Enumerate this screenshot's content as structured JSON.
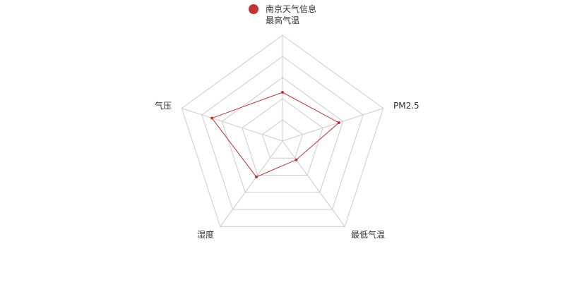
{
  "chart_data": {
    "type": "radar",
    "title": "最高气温",
    "legend": [
      "南京天气信息"
    ],
    "legend_position": "top-center",
    "indicators": [
      "最高气温",
      "PM2.5",
      "最低气温",
      "湿度",
      "气压"
    ],
    "series": [
      {
        "name": "南京天气信息",
        "values": [
          0.46,
          0.56,
          0.22,
          0.42,
          0.7
        ]
      }
    ],
    "max": 1,
    "split_levels": 5,
    "colors": {
      "series": "#c23531",
      "grid": "#cccccc",
      "text": "#333333"
    }
  }
}
